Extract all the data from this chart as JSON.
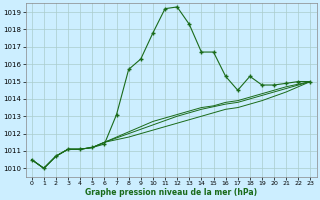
{
  "xlabel": "Graphe pression niveau de la mer (hPa)",
  "bg_color": "#cceeff",
  "line_color": "#1a6b1a",
  "grid_color": "#aacccc",
  "x_values": [
    0,
    1,
    2,
    3,
    4,
    5,
    6,
    7,
    8,
    9,
    10,
    11,
    12,
    13,
    14,
    15,
    16,
    17,
    18,
    19,
    20,
    21,
    22,
    23
  ],
  "series1": [
    1010.5,
    1010.0,
    1010.7,
    1011.1,
    1011.1,
    1011.2,
    1011.4,
    1013.1,
    1015.7,
    1016.3,
    1017.8,
    1019.2,
    1019.3,
    1018.3,
    1016.7,
    1016.7,
    1015.3,
    1014.5,
    1015.3,
    1014.8,
    1014.8,
    1014.9,
    1015.0,
    1015.0
  ],
  "series2": [
    1010.5,
    1010.0,
    1010.7,
    1011.1,
    1011.1,
    1011.2,
    1011.5,
    1011.8,
    1012.1,
    1012.4,
    1012.7,
    1012.9,
    1013.1,
    1013.3,
    1013.5,
    1013.6,
    1013.8,
    1013.9,
    1014.1,
    1014.3,
    1014.5,
    1014.7,
    1014.85,
    1015.0
  ],
  "series3": [
    1010.5,
    1010.0,
    1010.7,
    1011.1,
    1011.1,
    1011.2,
    1011.5,
    1011.75,
    1012.0,
    1012.25,
    1012.5,
    1012.75,
    1013.0,
    1013.2,
    1013.4,
    1013.55,
    1013.7,
    1013.8,
    1014.0,
    1014.2,
    1014.4,
    1014.6,
    1014.8,
    1015.0
  ],
  "series4": [
    1010.5,
    1010.0,
    1010.7,
    1011.1,
    1011.1,
    1011.2,
    1011.5,
    1011.65,
    1011.8,
    1012.0,
    1012.2,
    1012.4,
    1012.6,
    1012.8,
    1013.0,
    1013.2,
    1013.4,
    1013.5,
    1013.7,
    1013.9,
    1014.15,
    1014.4,
    1014.7,
    1015.0
  ],
  "ylim": [
    1009.5,
    1019.5
  ],
  "yticks": [
    1010,
    1011,
    1012,
    1013,
    1014,
    1015,
    1016,
    1017,
    1018,
    1019
  ],
  "xticks": [
    0,
    1,
    2,
    3,
    4,
    5,
    6,
    7,
    8,
    9,
    10,
    11,
    12,
    13,
    14,
    15,
    16,
    17,
    18,
    19,
    20,
    21,
    22,
    23
  ],
  "markersize": 3.0,
  "linewidth": 0.8,
  "trend_linewidth": 0.7
}
